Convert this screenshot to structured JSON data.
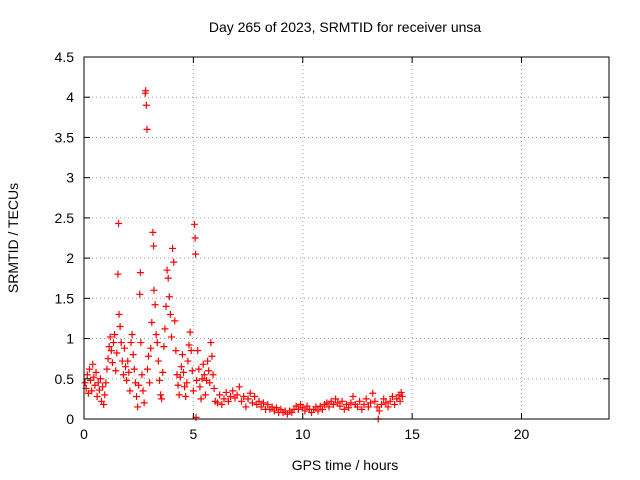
{
  "chart_data": {
    "type": "scatter",
    "title": "Day 265 of 2023, SRMTID for receiver unsa",
    "xlabel": "GPS time / hours",
    "ylabel": "SRMTID / TECUs",
    "xlim": [
      0,
      24
    ],
    "ylim": [
      0,
      4.5
    ],
    "xticks": [
      0,
      5,
      10,
      15,
      20
    ],
    "xtick_labels": [
      "0",
      "5",
      "10",
      "15",
      "20"
    ],
    "yticks": [
      0,
      0.5,
      1,
      1.5,
      2,
      2.5,
      3,
      3.5,
      4,
      4.5
    ],
    "ytick_labels": [
      "0",
      "0.5",
      "1",
      "1.5",
      "2",
      "2.5",
      "3",
      "3.5",
      "4",
      "4.5"
    ],
    "grid": true,
    "marker": "+",
    "colors": {
      "points": "#ff0000",
      "grid": "#a0a0a0",
      "axes": "#000000"
    },
    "series": [
      {
        "name": "SRMTID",
        "points": [
          [
            0.05,
            0.45
          ],
          [
            0.1,
            0.38
          ],
          [
            0.15,
            0.55
          ],
          [
            0.2,
            0.32
          ],
          [
            0.25,
            0.62
          ],
          [
            0.3,
            0.48
          ],
          [
            0.35,
            0.35
          ],
          [
            0.4,
            0.68
          ],
          [
            0.45,
            0.52
          ],
          [
            0.5,
            0.42
          ],
          [
            0.55,
            0.58
          ],
          [
            0.6,
            0.28
          ],
          [
            0.65,
            0.45
          ],
          [
            0.7,
            0.36
          ],
          [
            0.75,
            0.5
          ],
          [
            0.8,
            0.22
          ],
          [
            0.85,
            0.4
          ],
          [
            0.9,
            0.18
          ],
          [
            0.95,
            0.3
          ],
          [
            1.0,
            0.45
          ],
          [
            1.05,
            0.62
          ],
          [
            1.1,
            0.75
          ],
          [
            1.15,
            0.9
          ],
          [
            1.2,
            1.02
          ],
          [
            1.25,
            0.85
          ],
          [
            1.3,
            0.7
          ],
          [
            1.35,
            0.95
          ],
          [
            1.4,
            1.05
          ],
          [
            1.45,
            0.6
          ],
          [
            1.5,
            0.82
          ],
          [
            1.55,
            1.8
          ],
          [
            1.58,
            2.43
          ],
          [
            1.6,
            1.3
          ],
          [
            1.65,
            1.15
          ],
          [
            1.7,
            0.95
          ],
          [
            1.75,
            0.72
          ],
          [
            1.8,
            0.55
          ],
          [
            1.85,
            0.88
          ],
          [
            1.9,
            0.65
          ],
          [
            1.95,
            0.48
          ],
          [
            2.0,
            0.72
          ],
          [
            2.05,
            0.58
          ],
          [
            2.1,
            0.35
          ],
          [
            2.15,
            0.95
          ],
          [
            2.2,
            1.05
          ],
          [
            2.25,
            0.8
          ],
          [
            2.3,
            0.62
          ],
          [
            2.35,
            0.45
          ],
          [
            2.4,
            0.28
          ],
          [
            2.45,
            0.15
          ],
          [
            2.5,
            0.42
          ],
          [
            2.55,
            1.55
          ],
          [
            2.58,
            1.82
          ],
          [
            2.6,
            0.95
          ],
          [
            2.65,
            0.55
          ],
          [
            2.7,
            0.35
          ],
          [
            2.75,
            0.2
          ],
          [
            2.8,
            4.05
          ],
          [
            2.82,
            4.08
          ],
          [
            2.85,
            3.9
          ],
          [
            2.88,
            3.6
          ],
          [
            2.9,
            0.62
          ],
          [
            2.95,
            0.78
          ],
          [
            3.0,
            0.45
          ],
          [
            3.05,
            0.88
          ],
          [
            3.1,
            1.2
          ],
          [
            3.15,
            2.32
          ],
          [
            3.18,
            2.15
          ],
          [
            3.2,
            1.6
          ],
          [
            3.25,
            1.42
          ],
          [
            3.3,
            1.05
          ],
          [
            3.35,
            0.95
          ],
          [
            3.4,
            0.72
          ],
          [
            3.45,
            0.48
          ],
          [
            3.5,
            0.3
          ],
          [
            3.55,
            0.25
          ],
          [
            3.6,
            0.58
          ],
          [
            3.65,
            0.9
          ],
          [
            3.7,
            1.12
          ],
          [
            3.75,
            1.4
          ],
          [
            3.8,
            1.85
          ],
          [
            3.85,
            1.75
          ],
          [
            3.9,
            1.52
          ],
          [
            3.95,
            1.3
          ],
          [
            4.0,
            1.02
          ],
          [
            4.05,
            2.12
          ],
          [
            4.1,
            1.95
          ],
          [
            4.15,
            1.22
          ],
          [
            4.2,
            0.85
          ],
          [
            4.25,
            0.55
          ],
          [
            4.3,
            0.42
          ],
          [
            4.35,
            0.3
          ],
          [
            4.4,
            0.52
          ],
          [
            4.45,
            0.65
          ],
          [
            4.5,
            0.8
          ],
          [
            4.55,
            0.58
          ],
          [
            4.6,
            0.4
          ],
          [
            4.65,
            0.28
          ],
          [
            4.7,
            0.45
          ],
          [
            4.75,
            0.72
          ],
          [
            4.8,
            0.92
          ],
          [
            4.85,
            1.08
          ],
          [
            4.9,
            0.85
          ],
          [
            4.95,
            0.6
          ],
          [
            5.0,
            0.35
          ],
          [
            5.05,
            2.42
          ],
          [
            5.08,
            2.25
          ],
          [
            5.1,
            2.05
          ],
          [
            5.12,
            0.02
          ],
          [
            5.15,
            0.48
          ],
          [
            5.2,
            0.85
          ],
          [
            5.25,
            0.62
          ],
          [
            5.3,
            0.4
          ],
          [
            5.35,
            0.25
          ],
          [
            5.4,
            0.5
          ],
          [
            5.45,
            0.68
          ],
          [
            5.5,
            0.55
          ],
          [
            5.55,
            0.3
          ],
          [
            5.6,
            0.48
          ],
          [
            5.65,
            0.72
          ],
          [
            5.7,
            0.6
          ],
          [
            5.75,
            0.45
          ],
          [
            5.8,
            0.95
          ],
          [
            5.85,
            0.78
          ],
          [
            5.9,
            0.55
          ],
          [
            5.95,
            0.38
          ],
          [
            6.0,
            0.22
          ],
          [
            6.1,
            0.2
          ],
          [
            6.2,
            0.3
          ],
          [
            6.3,
            0.18
          ],
          [
            6.4,
            0.25
          ],
          [
            6.5,
            0.33
          ],
          [
            6.6,
            0.22
          ],
          [
            6.7,
            0.28
          ],
          [
            6.8,
            0.35
          ],
          [
            6.9,
            0.26
          ],
          [
            7.0,
            0.3
          ],
          [
            7.1,
            0.4
          ],
          [
            7.2,
            0.22
          ],
          [
            7.3,
            0.28
          ],
          [
            7.4,
            0.15
          ],
          [
            7.5,
            0.25
          ],
          [
            7.6,
            0.32
          ],
          [
            7.7,
            0.2
          ],
          [
            7.8,
            0.28
          ],
          [
            7.9,
            0.18
          ],
          [
            8.0,
            0.22
          ],
          [
            8.1,
            0.15
          ],
          [
            8.2,
            0.2
          ],
          [
            8.3,
            0.12
          ],
          [
            8.4,
            0.18
          ],
          [
            8.5,
            0.12
          ],
          [
            8.6,
            0.15
          ],
          [
            8.7,
            0.1
          ],
          [
            8.8,
            0.14
          ],
          [
            8.9,
            0.08
          ],
          [
            9.0,
            0.12
          ],
          [
            9.1,
            0.08
          ],
          [
            9.2,
            0.1
          ],
          [
            9.3,
            0.06
          ],
          [
            9.4,
            0.1
          ],
          [
            9.5,
            0.08
          ],
          [
            9.6,
            0.12
          ],
          [
            9.7,
            0.16
          ],
          [
            9.8,
            0.12
          ],
          [
            9.9,
            0.18
          ],
          [
            10.0,
            0.14
          ],
          [
            10.1,
            0.1
          ],
          [
            10.2,
            0.16
          ],
          [
            10.3,
            0.12
          ],
          [
            10.4,
            0.08
          ],
          [
            10.5,
            0.12
          ],
          [
            10.6,
            0.15
          ],
          [
            10.7,
            0.1
          ],
          [
            10.8,
            0.16
          ],
          [
            10.9,
            0.12
          ],
          [
            11.0,
            0.18
          ],
          [
            11.1,
            0.2
          ],
          [
            11.2,
            0.15
          ],
          [
            11.3,
            0.22
          ],
          [
            11.4,
            0.18
          ],
          [
            11.5,
            0.25
          ],
          [
            11.6,
            0.2
          ],
          [
            11.7,
            0.16
          ],
          [
            11.8,
            0.22
          ],
          [
            11.9,
            0.12
          ],
          [
            12.0,
            0.18
          ],
          [
            12.1,
            0.14
          ],
          [
            12.2,
            0.2
          ],
          [
            12.3,
            0.28
          ],
          [
            12.4,
            0.18
          ],
          [
            12.5,
            0.15
          ],
          [
            12.6,
            0.22
          ],
          [
            12.7,
            0.12
          ],
          [
            12.8,
            0.18
          ],
          [
            12.9,
            0.25
          ],
          [
            13.0,
            0.15
          ],
          [
            13.1,
            0.2
          ],
          [
            13.2,
            0.32
          ],
          [
            13.3,
            0.22
          ],
          [
            13.4,
            0.15
          ],
          [
            13.45,
            0.0
          ],
          [
            13.5,
            0.1
          ],
          [
            13.6,
            0.18
          ],
          [
            13.7,
            0.25
          ],
          [
            13.8,
            0.2
          ],
          [
            13.9,
            0.15
          ],
          [
            14.0,
            0.22
          ],
          [
            14.1,
            0.28
          ],
          [
            14.2,
            0.18
          ],
          [
            14.3,
            0.25
          ],
          [
            14.4,
            0.3
          ],
          [
            14.45,
            0.22
          ],
          [
            14.5,
            0.33
          ],
          [
            14.55,
            0.28
          ]
        ]
      }
    ]
  }
}
